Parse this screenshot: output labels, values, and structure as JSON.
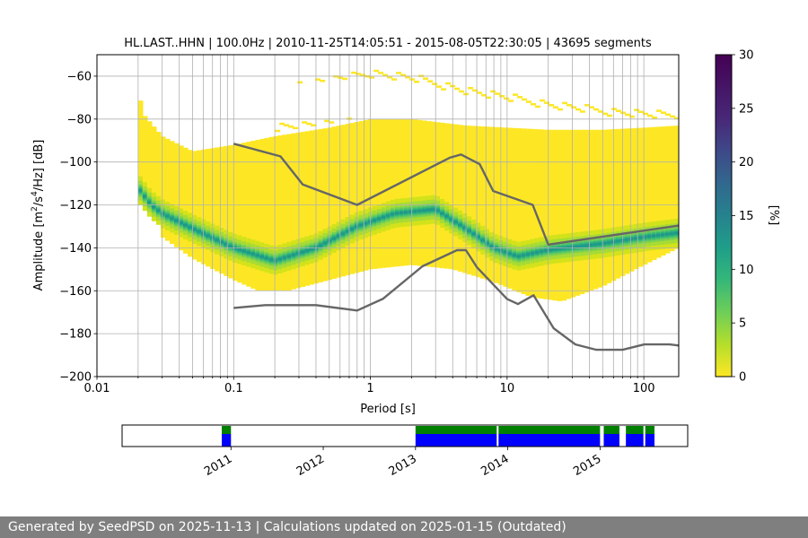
{
  "chart_data": {
    "type": "heatmap",
    "title": "HL.LAST..HHN | 100.0Hz | 2010-11-25T14:05:51 - 2015-08-05T22:30:05 | 43695 segments",
    "xlabel": "Period [s]",
    "ylabel_html": "Amplitude [m<tspan dy='-6' font-size='9'>2</tspan><tspan dy='6'>/s</tspan><tspan dy='-6' font-size='9'>4</tspan><tspan dy='6'>/Hz] [dB]</tspan>",
    "x_scale": "log",
    "xlim": [
      0.01,
      180
    ],
    "ylim": [
      -200,
      -50
    ],
    "x_ticks": [
      {
        "value": 0.01,
        "label": "0.01"
      },
      {
        "value": 0.1,
        "label": "0.1"
      },
      {
        "value": 1,
        "label": "1"
      },
      {
        "value": 10,
        "label": "10"
      },
      {
        "value": 100,
        "label": "100"
      }
    ],
    "y_ticks": [
      -60,
      -80,
      -100,
      -120,
      -140,
      -160,
      -180,
      -200
    ],
    "grid": true,
    "colorbar": {
      "label": "[%]",
      "range": [
        0,
        30
      ],
      "ticks": [
        0,
        5,
        10,
        15,
        20,
        25,
        30
      ],
      "colormap": "viridis_r"
    },
    "psd_density": {
      "period_start": 0.02,
      "period_end": 180,
      "upper_envelope_db": [
        {
          "period": 0.02,
          "db": -67
        },
        {
          "period": 0.022,
          "db": -78
        },
        {
          "period": 0.03,
          "db": -88
        },
        {
          "period": 0.05,
          "db": -95
        },
        {
          "period": 0.1,
          "db": -92
        },
        {
          "period": 0.2,
          "db": -88
        },
        {
          "period": 0.5,
          "db": -84
        },
        {
          "period": 1,
          "db": -80
        },
        {
          "period": 2,
          "db": -80
        },
        {
          "period": 5,
          "db": -83
        },
        {
          "period": 10,
          "db": -84
        },
        {
          "period": 20,
          "db": -85
        },
        {
          "period": 50,
          "db": -85
        },
        {
          "period": 100,
          "db": -84
        },
        {
          "period": 180,
          "db": -83
        }
      ],
      "lower_envelope_db": [
        {
          "period": 0.02,
          "db": -118
        },
        {
          "period": 0.028,
          "db": -122
        },
        {
          "period": 0.03,
          "db": -135
        },
        {
          "period": 0.05,
          "db": -145
        },
        {
          "period": 0.1,
          "db": -155
        },
        {
          "period": 0.15,
          "db": -160
        },
        {
          "period": 0.25,
          "db": -160
        },
        {
          "period": 0.5,
          "db": -155
        },
        {
          "period": 1,
          "db": -150
        },
        {
          "period": 2,
          "db": -148
        },
        {
          "period": 4,
          "db": -150
        },
        {
          "period": 8,
          "db": -156
        },
        {
          "period": 15,
          "db": -163
        },
        {
          "period": 25,
          "db": -165
        },
        {
          "period": 50,
          "db": -158
        },
        {
          "period": 100,
          "db": -148
        },
        {
          "period": 180,
          "db": -140
        }
      ],
      "mode_ridge_db": [
        {
          "period": 0.02,
          "db": -112
        },
        {
          "period": 0.025,
          "db": -120
        },
        {
          "period": 0.03,
          "db": -124
        },
        {
          "period": 0.05,
          "db": -131
        },
        {
          "period": 0.1,
          "db": -140
        },
        {
          "period": 0.2,
          "db": -146
        },
        {
          "period": 0.4,
          "db": -140
        },
        {
          "period": 0.8,
          "db": -130
        },
        {
          "period": 1.5,
          "db": -124
        },
        {
          "period": 3,
          "db": -122
        },
        {
          "period": 5,
          "db": -131
        },
        {
          "period": 8,
          "db": -140
        },
        {
          "period": 12,
          "db": -144
        },
        {
          "period": 20,
          "db": -141
        },
        {
          "period": 50,
          "db": -138
        },
        {
          "period": 100,
          "db": -135
        },
        {
          "period": 180,
          "db": -133
        }
      ]
    },
    "reference_models": [
      {
        "points": [
          {
            "period": 0.1,
            "db": -91.5
          },
          {
            "period": 0.22,
            "db": -97.4
          },
          {
            "period": 0.32,
            "db": -110.5
          },
          {
            "period": 0.8,
            "db": -120
          },
          {
            "period": 3.8,
            "db": -98
          },
          {
            "period": 4.6,
            "db": -96.5
          },
          {
            "period": 6.3,
            "db": -101
          },
          {
            "period": 7.9,
            "db": -113.5
          },
          {
            "period": 15.4,
            "db": -120
          },
          {
            "period": 20,
            "db": -138.5
          },
          {
            "period": 354.8,
            "db": -126.9
          }
        ]
      },
      {
        "points": [
          {
            "period": 0.1,
            "db": -168
          },
          {
            "period": 0.17,
            "db": -166.7
          },
          {
            "period": 0.4,
            "db": -166.7
          },
          {
            "period": 0.8,
            "db": -169.2
          },
          {
            "period": 1.24,
            "db": -163.7
          },
          {
            "period": 2.4,
            "db": -148.6
          },
          {
            "period": 4.3,
            "db": -141.1
          },
          {
            "period": 5,
            "db": -141.1
          },
          {
            "period": 6,
            "db": -149
          },
          {
            "period": 10,
            "db": -163.8
          },
          {
            "period": 12,
            "db": -166.2
          },
          {
            "period": 15.6,
            "db": -162.1
          },
          {
            "period": 21.9,
            "db": -177.5
          },
          {
            "period": 31.6,
            "db": -185
          },
          {
            "period": 45,
            "db": -187.5
          },
          {
            "period": 70,
            "db": -187.5
          },
          {
            "period": 101,
            "db": -185
          },
          {
            "period": 154,
            "db": -185
          },
          {
            "period": 180,
            "db": -185.5
          }
        ]
      }
    ],
    "availability": {
      "tick_labels": [
        "2011",
        "2012",
        "2013",
        "2014",
        "2015"
      ],
      "tick_values": [
        2011.0,
        2012.0,
        2013.0,
        2014.0,
        2015.0
      ],
      "range": [
        2009.82,
        2015.95
      ],
      "status_colors": {
        "data": "#0000ff",
        "processed": "#008000"
      },
      "segments": [
        {
          "start": 2010.9,
          "end": 2011.0
        },
        {
          "start": 2013.0,
          "end": 2013.88
        },
        {
          "start": 2013.9,
          "end": 2015.0
        },
        {
          "start": 2015.04,
          "end": 2015.21
        },
        {
          "start": 2015.28,
          "end": 2015.47
        },
        {
          "start": 2015.49,
          "end": 2015.59
        }
      ]
    }
  },
  "footer": {
    "text": "Generated by SeedPSD on 2025-11-13 | Calculations updated on 2025-01-15 (Outdated)",
    "background": "#7f7f7f"
  }
}
